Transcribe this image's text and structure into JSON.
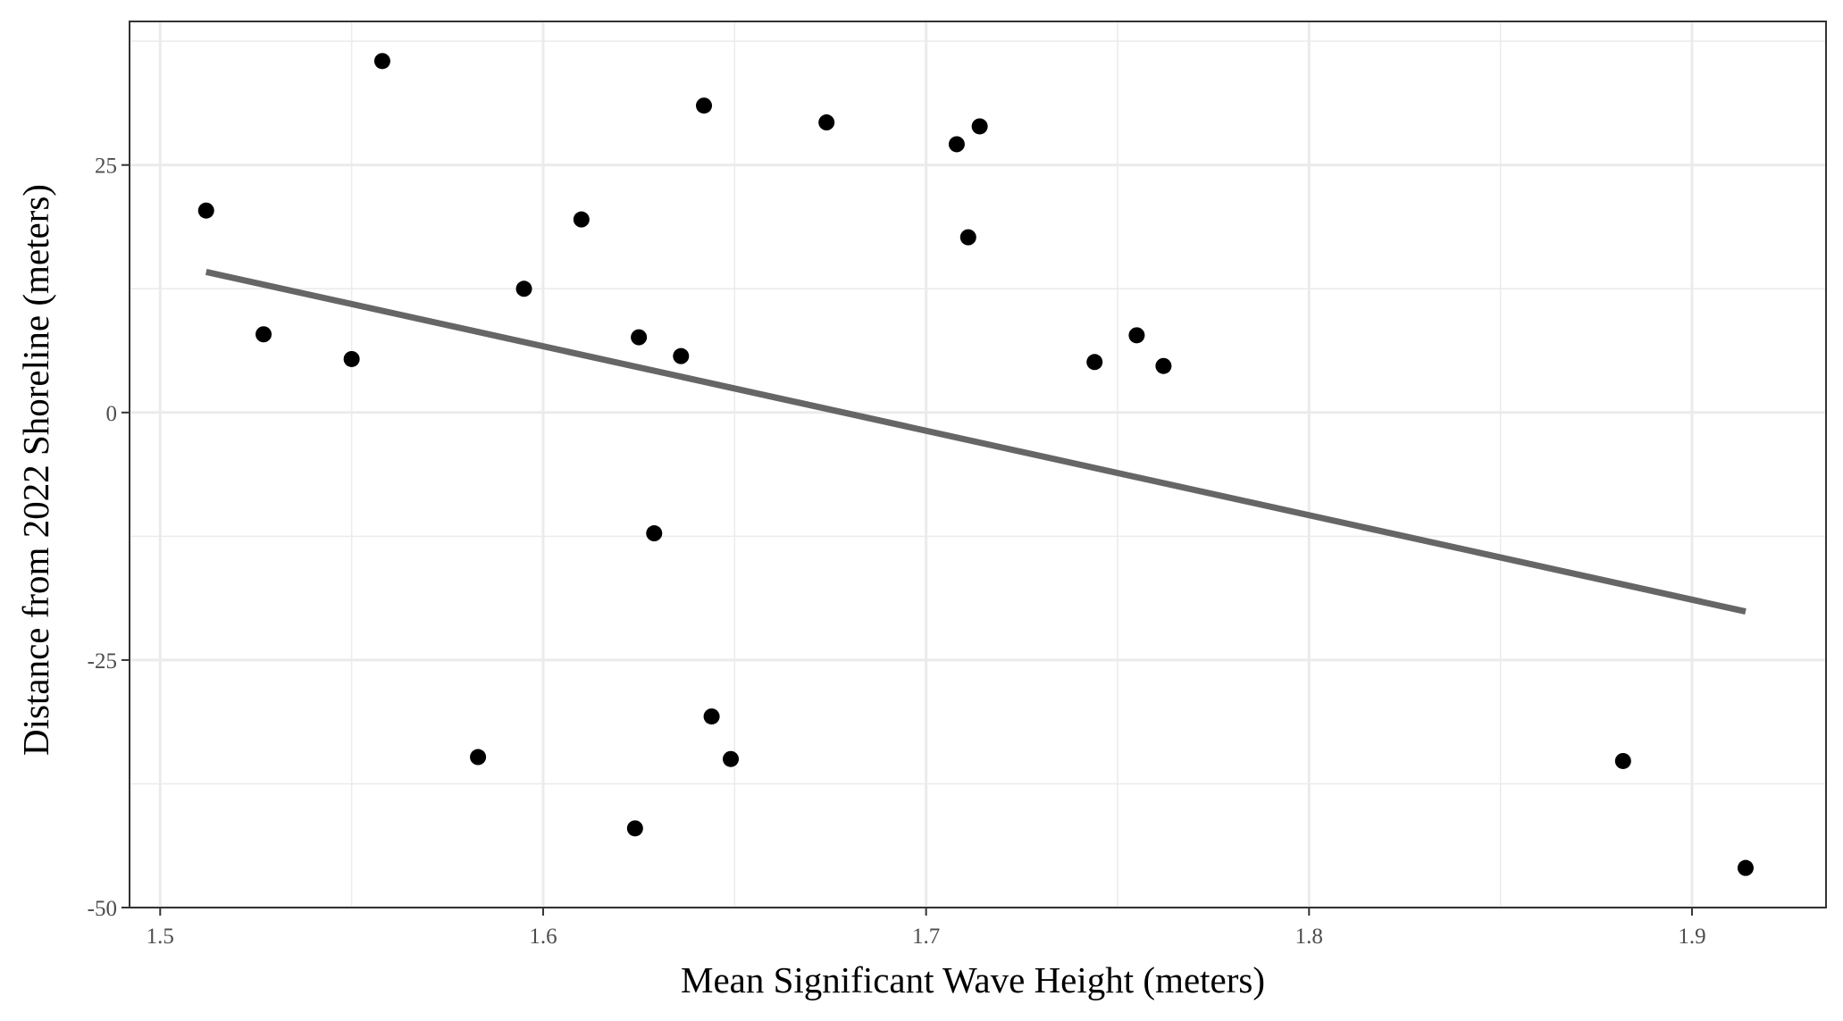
{
  "chart_data": {
    "type": "scatter",
    "title": "",
    "xlabel": "Mean Significant Wave Height (meters)",
    "ylabel": "Distance from 2022 Shoreline (meters)",
    "xlim": [
      1.492,
      1.935
    ],
    "ylim": [
      -50,
      39.5
    ],
    "x_ticks": [
      1.5,
      1.6,
      1.7,
      1.8,
      1.9
    ],
    "x_tick_labels": [
      "1.5",
      "1.6",
      "1.7",
      "1.8",
      "1.9"
    ],
    "y_ticks": [
      -50,
      -25,
      0,
      25
    ],
    "y_tick_labels": [
      "-50",
      "-25",
      "0",
      "25"
    ],
    "grid": true,
    "points": [
      {
        "x": 1.512,
        "y": 20.4
      },
      {
        "x": 1.527,
        "y": 7.9
      },
      {
        "x": 1.55,
        "y": 5.4
      },
      {
        "x": 1.558,
        "y": 35.5
      },
      {
        "x": 1.583,
        "y": -34.8
      },
      {
        "x": 1.595,
        "y": 12.5
      },
      {
        "x": 1.61,
        "y": 19.5
      },
      {
        "x": 1.624,
        "y": -42.0
      },
      {
        "x": 1.625,
        "y": 7.6
      },
      {
        "x": 1.629,
        "y": -12.2
      },
      {
        "x": 1.636,
        "y": 5.7
      },
      {
        "x": 1.642,
        "y": 31.0
      },
      {
        "x": 1.644,
        "y": -30.7
      },
      {
        "x": 1.649,
        "y": -35.0
      },
      {
        "x": 1.674,
        "y": 29.3
      },
      {
        "x": 1.708,
        "y": 27.1
      },
      {
        "x": 1.711,
        "y": 17.7
      },
      {
        "x": 1.714,
        "y": 28.9
      },
      {
        "x": 1.744,
        "y": 5.1
      },
      {
        "x": 1.755,
        "y": 7.8
      },
      {
        "x": 1.762,
        "y": 4.7
      },
      {
        "x": 1.882,
        "y": -35.2
      },
      {
        "x": 1.914,
        "y": -46.0
      }
    ],
    "trend_line": {
      "x": [
        1.512,
        1.914
      ],
      "y": [
        14.2,
        -20.1
      ]
    },
    "colors": {
      "points": "#000000",
      "trend_line": "#666666",
      "grid": "#ebebeb",
      "panel_border": "#333333"
    }
  }
}
